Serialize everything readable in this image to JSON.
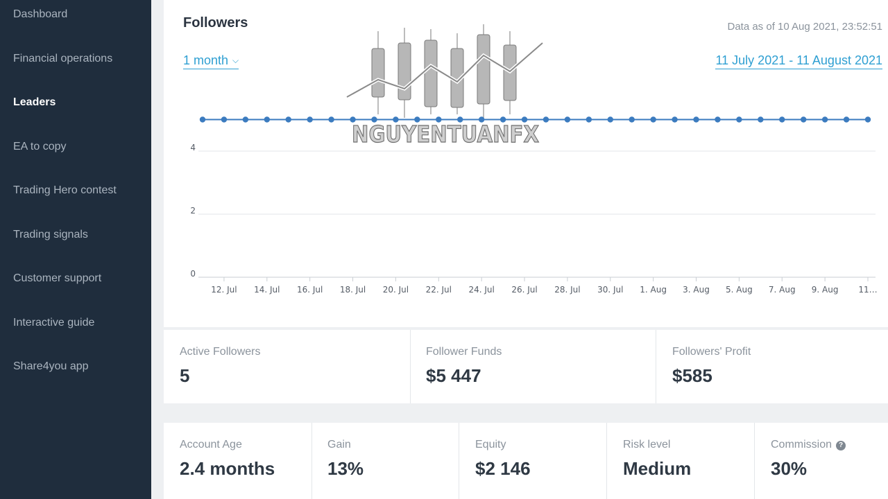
{
  "sidebar": {
    "items": [
      {
        "label": "Dashboard",
        "active": false
      },
      {
        "label": "Financial operations",
        "active": false
      },
      {
        "label": "Leaders",
        "active": true
      },
      {
        "label": "EA to copy",
        "active": false
      },
      {
        "label": "Trading Hero contest",
        "active": false
      },
      {
        "label": "Trading signals",
        "active": false
      },
      {
        "label": "Customer support",
        "active": false
      },
      {
        "label": "Interactive guide",
        "active": false
      },
      {
        "label": "Share4you app",
        "active": false
      }
    ]
  },
  "followers_panel": {
    "title": "Followers",
    "as_of": "Data as of 10 Aug 2021, 23:52:51",
    "period": "1 month",
    "date_range": "11 July 2021 - 11 August 2021"
  },
  "watermark": {
    "text": "NGUYENTUANFX"
  },
  "chart_data": {
    "type": "line",
    "x": [
      "11 Jul",
      "12 Jul",
      "13 Jul",
      "14 Jul",
      "15 Jul",
      "16 Jul",
      "17 Jul",
      "18 Jul",
      "19 Jul",
      "20 Jul",
      "21 Jul",
      "22 Jul",
      "23 Jul",
      "24 Jul",
      "25 Jul",
      "26 Jul",
      "27 Jul",
      "28 Jul",
      "29 Jul",
      "30 Jul",
      "31 Jul",
      "1 Aug",
      "2 Aug",
      "3 Aug",
      "4 Aug",
      "5 Aug",
      "6 Aug",
      "7 Aug",
      "8 Aug",
      "9 Aug",
      "10 Aug",
      "11 Aug"
    ],
    "series": [
      {
        "values": [
          5,
          5,
          5,
          5,
          5,
          5,
          5,
          5,
          5,
          5,
          5,
          5,
          5,
          5,
          5,
          5,
          5,
          5,
          5,
          5,
          5,
          5,
          5,
          5,
          5,
          5,
          5,
          5,
          5,
          5,
          5,
          5
        ]
      }
    ],
    "x_tick_labels": [
      "12. Jul",
      "14. Jul",
      "16. Jul",
      "18. Jul",
      "20. Jul",
      "22. Jul",
      "24. Jul",
      "26. Jul",
      "28. Jul",
      "30. Jul",
      "1. Aug",
      "3. Aug",
      "5. Aug",
      "7. Aug",
      "9. Aug",
      "11…"
    ],
    "y_ticks": [
      0,
      2,
      4
    ],
    "ylim": [
      0,
      5
    ],
    "grid": true,
    "color": "#3b7bbf"
  },
  "summary_stats": [
    {
      "label": "Active Followers",
      "value": "5"
    },
    {
      "label": "Follower Funds",
      "value": "$5 447"
    },
    {
      "label": "Followers' Profit",
      "value": "$585"
    }
  ],
  "account_stats": [
    {
      "label": "Account Age",
      "value": "2.4 months"
    },
    {
      "label": "Gain",
      "value": "13%"
    },
    {
      "label": "Equity",
      "value": "$2 146"
    },
    {
      "label": "Risk level",
      "value": "Medium"
    },
    {
      "label": "Commission",
      "value": "30%",
      "icon": "help-icon"
    }
  ]
}
